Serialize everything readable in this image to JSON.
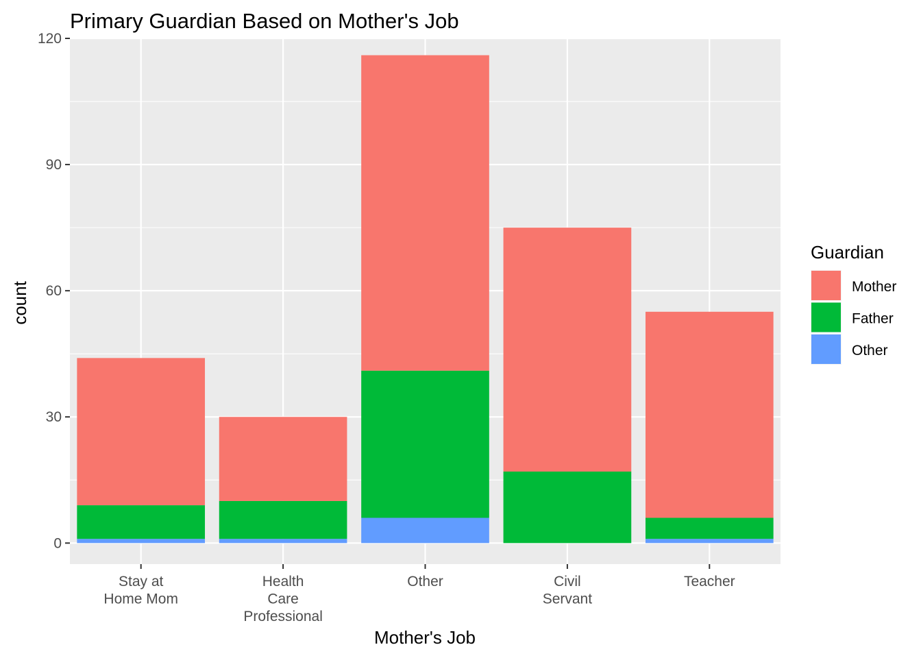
{
  "chart_data": {
    "type": "bar",
    "stacked": true,
    "title": "Primary Guardian Based on Mother's Job",
    "xlabel": "Mother's Job",
    "ylabel": "count",
    "ylim": [
      -5,
      120
    ],
    "yticks": [
      0,
      30,
      60,
      90,
      120
    ],
    "grid": true,
    "legend_position": "right",
    "legend_title": "Guardian",
    "categories": [
      "Stay at\nHome Mom",
      "Health\nCare\nProfessional",
      "Other",
      "Civil\nServant",
      "Teacher"
    ],
    "series": [
      {
        "name": "Other",
        "color": "#619CFF",
        "values": [
          1,
          1,
          6,
          0,
          1
        ]
      },
      {
        "name": "Father",
        "color": "#00BA38",
        "values": [
          8,
          9,
          35,
          17,
          5
        ]
      },
      {
        "name": "Mother",
        "color": "#F8766D",
        "values": [
          35,
          20,
          75,
          58,
          49
        ]
      }
    ],
    "legend_order": [
      "Mother",
      "Father",
      "Other"
    ],
    "panel_background": "#EBEBEB",
    "gridline_color": "#FFFFFF"
  }
}
